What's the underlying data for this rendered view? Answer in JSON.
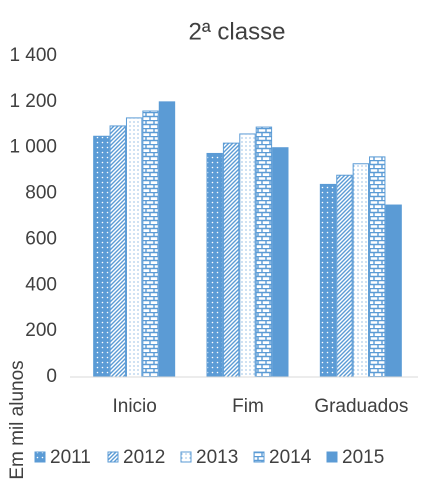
{
  "chart_data": {
    "type": "bar",
    "title": "2ª classe",
    "y_label": "Em mil alunos",
    "categories": [
      "Inicio",
      "Fim",
      "Graduados"
    ],
    "series": [
      {
        "name": "2011",
        "color": "#5b9bd5",
        "pattern": "dots",
        "values": [
          1050,
          975,
          840
        ]
      },
      {
        "name": "2012",
        "color": "#5b9bd5",
        "pattern": "diagonal",
        "values": [
          1095,
          1020,
          880
        ]
      },
      {
        "name": "2013",
        "color": "#5b9bd5",
        "pattern": "light-dots",
        "values": [
          1130,
          1060,
          930
        ]
      },
      {
        "name": "2014",
        "color": "#5b9bd5",
        "pattern": "brick",
        "values": [
          1160,
          1090,
          960
        ]
      },
      {
        "name": "2015",
        "color": "#5b9bd5",
        "pattern": "solid",
        "values": [
          1200,
          1000,
          750
        ]
      }
    ],
    "ylim": [
      0,
      1400
    ],
    "yticks": [
      0,
      200,
      400,
      600,
      800,
      {
        "value": 1000,
        "label": "1 000"
      },
      {
        "value": 1200,
        "label": "1 200"
      },
      {
        "value": 1400,
        "label": "1 400"
      }
    ],
    "grid": false,
    "legend": "bottom"
  }
}
